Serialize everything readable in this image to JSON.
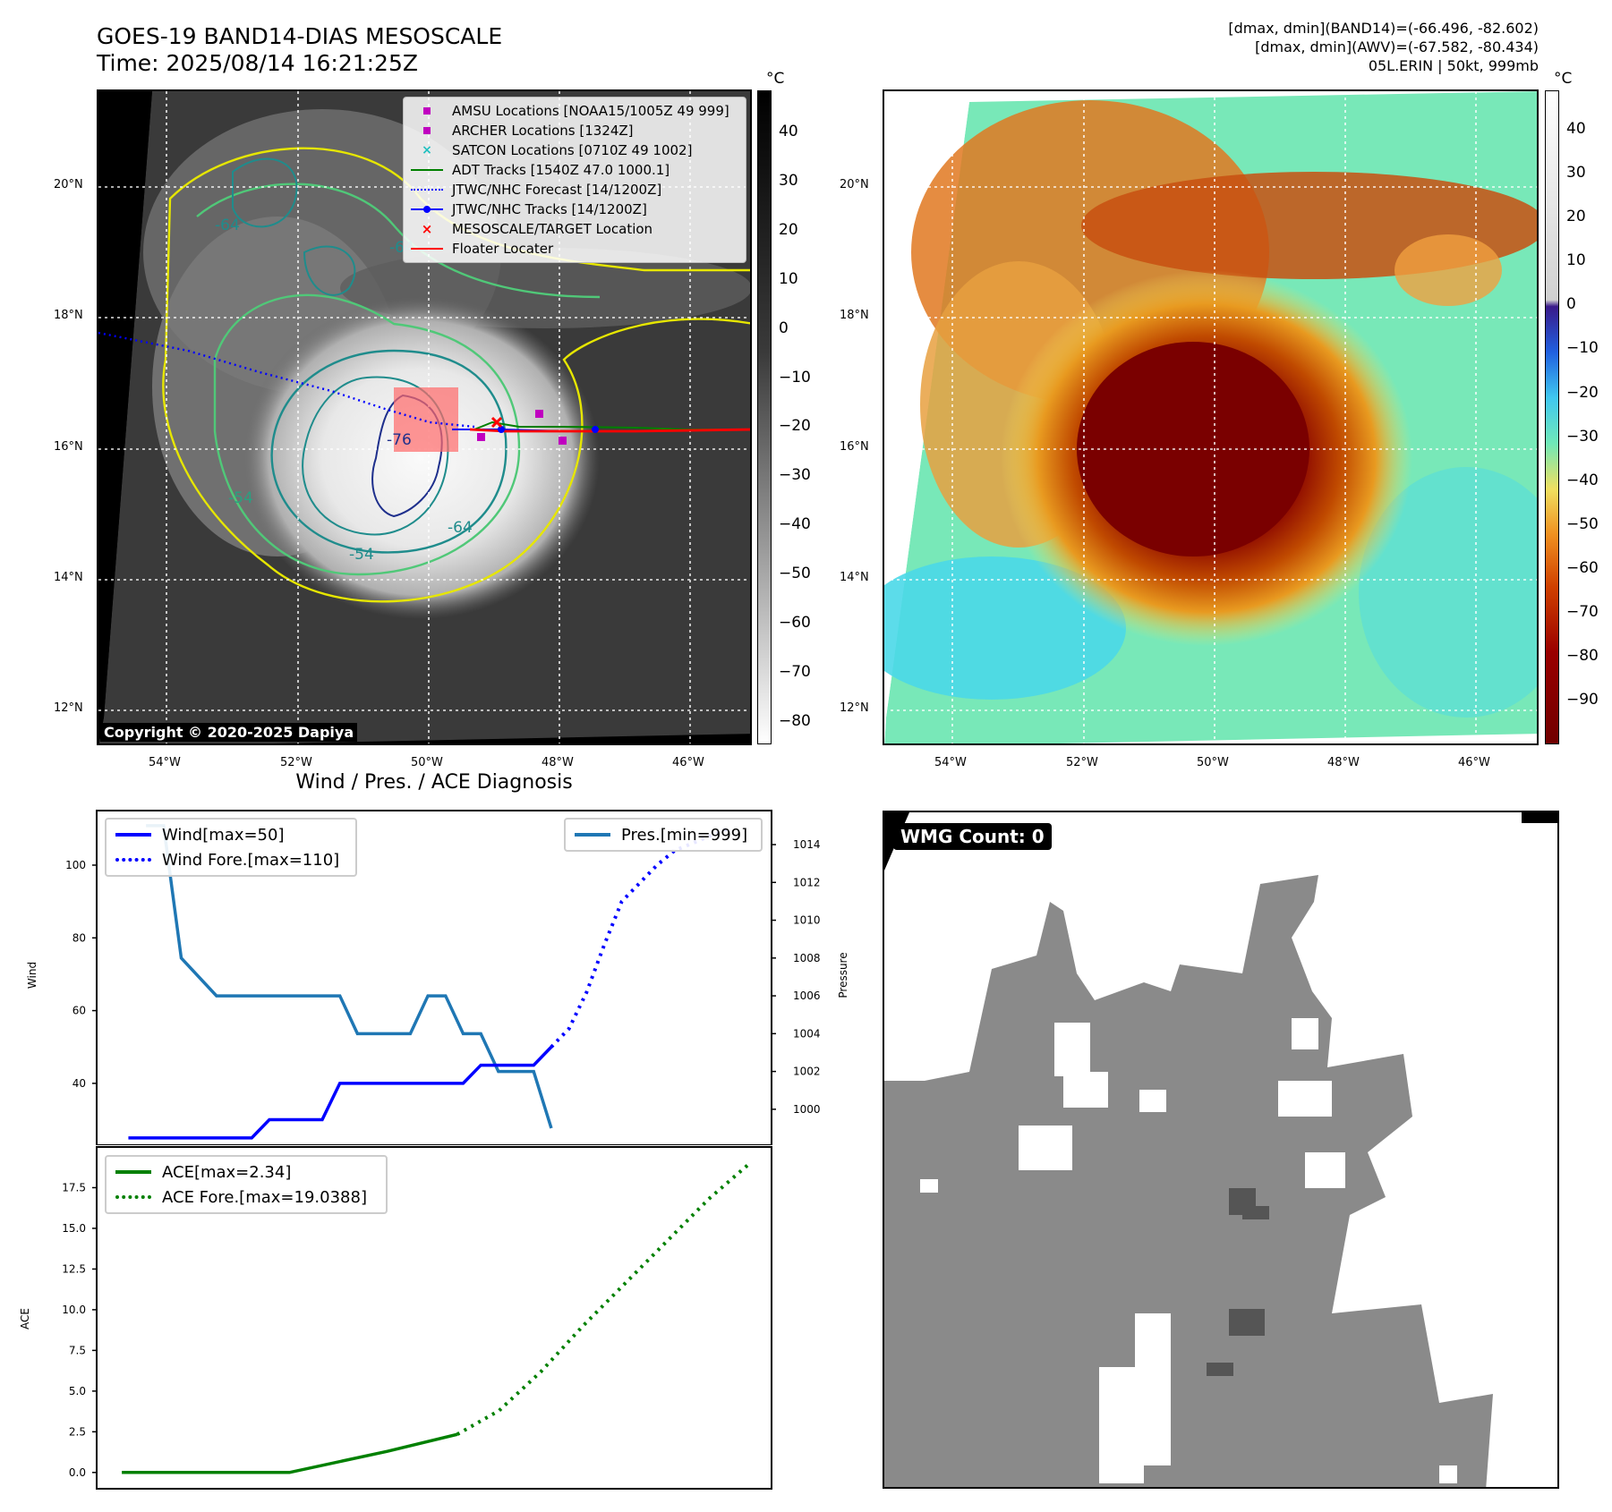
{
  "header": {
    "title_line1": "GOES-19 BAND14-DIAS MESOSCALE",
    "title_line2": "Time: 2025/08/14 16:21:25Z",
    "info_line1": "[dmax, dmin](BAND14)=(-66.496, -82.602)",
    "info_line2": "[dmax, dmin](AWV)=(-67.582, -80.434)",
    "info_line3": "05L.ERIN | 50kt, 999mb"
  },
  "map_axes": {
    "lat_labels": [
      "20°N",
      "18°N",
      "16°N",
      "14°N",
      "12°N"
    ],
    "lon_labels": [
      "54°W",
      "52°W",
      "50°W",
      "48°W",
      "46°W"
    ]
  },
  "ir_panel": {
    "colorbar_unit": "°C",
    "colorbar_ticks": [
      "40",
      "30",
      "20",
      "10",
      "0",
      "−10",
      "−20",
      "−30",
      "−40",
      "−50",
      "−60",
      "−70",
      "−80"
    ],
    "contour_labels": [
      "-54",
      "-64",
      "-54",
      "-64",
      "-76",
      "-64"
    ],
    "copyright": "Copyright © 2020-2025 Dapiya",
    "legend": [
      {
        "label": "AMSU Locations [NOAA15/1005Z 49 999]",
        "color": "#c000c0",
        "marker": "square"
      },
      {
        "label": "ARCHER Locations [1324Z]",
        "color": "#c000c0",
        "marker": "square"
      },
      {
        "label": "SATCON Locations [0710Z 49 1002]",
        "color": "#20c0c0",
        "marker": "x"
      },
      {
        "label": "ADT Tracks [1540Z 47.0 1000.1]",
        "color": "#008000",
        "marker": "line"
      },
      {
        "label": "JTWC/NHC Forecast [14/1200Z]",
        "color": "#0000ff",
        "marker": "dotted"
      },
      {
        "label": "JTWC/NHC Tracks [14/1200Z]",
        "color": "#0000ff",
        "marker": "line-dot"
      },
      {
        "label": "MESOSCALE/TARGET Location",
        "color": "#ff0000",
        "marker": "x"
      },
      {
        "label": "Floater Locater",
        "color": "#ff0000",
        "marker": "line"
      }
    ]
  },
  "awv_panel": {
    "colorbar_unit": "°C",
    "colorbar_ticks": [
      "40",
      "30",
      "20",
      "10",
      "0",
      "−10",
      "−20",
      "−30",
      "−40",
      "−50",
      "−60",
      "−70",
      "−80",
      "−90"
    ]
  },
  "wind_chart": {
    "title": "Wind / Pres. / ACE Diagnosis",
    "ylabel_left": "Wind",
    "ylabel_right": "Pressure",
    "legend_left": [
      "Wind[max=50]",
      "Wind Fore.[max=110]"
    ],
    "legend_right": [
      "Pres.[min=999]"
    ],
    "colors": {
      "wind": "#0000ff",
      "pressure": "#1f77b4"
    }
  },
  "ace_chart": {
    "ylabel": "ACE",
    "legend": [
      "ACE[max=2.34]",
      "ACE Fore.[max=19.0388]"
    ],
    "color": "#008000"
  },
  "wmg_panel": {
    "badge": "WMG Count: 0"
  },
  "chart_data": [
    {
      "type": "line",
      "title": "Wind / Pres. / ACE Diagnosis",
      "ylabel": "Wind",
      "ylim": [
        23,
        115
      ],
      "x": [
        0,
        1,
        2,
        3,
        4,
        5,
        6,
        7,
        8,
        9,
        10,
        11,
        12,
        13,
        14,
        15,
        16,
        17,
        18,
        19,
        20,
        21,
        22,
        23,
        24,
        25
      ],
      "series": [
        {
          "name": "Wind[max=50]",
          "style": "solid",
          "x": [
            0,
            7,
            8,
            11,
            12,
            19,
            20,
            23,
            24
          ],
          "values": [
            25,
            25,
            30,
            30,
            40,
            40,
            45,
            45,
            50
          ]
        },
        {
          "name": "Wind Fore.[max=110]",
          "style": "dotted",
          "x": [
            24,
            25,
            26,
            27,
            28,
            29,
            30,
            31,
            32,
            33,
            34
          ],
          "values": [
            50,
            55,
            65,
            78,
            90,
            95,
            100,
            104,
            106,
            108,
            110
          ]
        }
      ],
      "secondary_axis": {
        "ylabel": "Pressure",
        "ylim": [
          998.1,
          1015.8
        ],
        "ticks": [
          1000,
          1002,
          1004,
          1006,
          1008,
          1010,
          1012,
          1014
        ],
        "series": [
          {
            "name": "Pres.[min=999]",
            "x": [
              1,
              2,
              3,
              5,
              12,
              13,
              16,
              17,
              18,
              19,
              20,
              21,
              23,
              24
            ],
            "values": [
              1015,
              1015,
              1008,
              1006,
              1006,
              1004,
              1004,
              1006,
              1006,
              1004,
              1004,
              1002,
              1002,
              999
            ]
          }
        ]
      }
    },
    {
      "type": "line",
      "ylabel": "ACE",
      "ylim": [
        -1,
        20
      ],
      "yticks": [
        0.0,
        2.5,
        5.0,
        7.5,
        10.0,
        12.5,
        15.0,
        17.5
      ],
      "series": [
        {
          "name": "ACE[max=2.34]",
          "style": "solid",
          "x": [
            0,
            12,
            19,
            24
          ],
          "values": [
            0,
            0,
            1.3,
            2.34
          ]
        },
        {
          "name": "ACE Fore.[max=19.0388]",
          "style": "dotted",
          "x": [
            24,
            27,
            30,
            33,
            36,
            39,
            42,
            45
          ],
          "values": [
            2.34,
            3.8,
            6.2,
            9.0,
            11.6,
            14.2,
            16.8,
            19.04
          ]
        }
      ]
    }
  ]
}
